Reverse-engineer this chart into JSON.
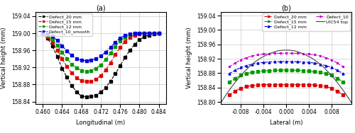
{
  "left_plot": {
    "title": "(a)",
    "xlabel": "Longitudinal (m)",
    "ylabel": "Vertical height (mm)",
    "xlim": [
      0.4585,
      0.4855
    ],
    "ylim": [
      158.835,
      159.05
    ],
    "xticks": [
      0.46,
      0.464,
      0.468,
      0.472,
      0.476,
      0.48,
      0.484
    ],
    "yticks": [
      158.84,
      158.88,
      158.92,
      158.96,
      159.0,
      159.04
    ],
    "series": [
      {
        "label": "Defect_20 mm",
        "color": "#000000",
        "marker": "s",
        "linestyle": "--",
        "x": [
          0.46,
          0.461,
          0.462,
          0.463,
          0.464,
          0.465,
          0.466,
          0.467,
          0.468,
          0.469,
          0.47,
          0.471,
          0.472,
          0.473,
          0.474,
          0.475,
          0.476,
          0.477,
          0.478,
          0.479,
          0.48,
          0.481,
          0.482,
          0.483,
          0.484
        ],
        "y": [
          159.0,
          158.988,
          158.97,
          158.945,
          158.918,
          158.897,
          158.878,
          158.862,
          158.853,
          158.851,
          158.852,
          158.855,
          158.862,
          158.873,
          158.888,
          158.905,
          158.924,
          158.943,
          158.96,
          158.974,
          158.985,
          158.992,
          158.996,
          158.999,
          159.0
        ]
      },
      {
        "label": "Defect_15 mm",
        "color": "#dd0000",
        "marker": "s",
        "linestyle": "--",
        "x": [
          0.46,
          0.461,
          0.462,
          0.463,
          0.464,
          0.465,
          0.466,
          0.467,
          0.468,
          0.469,
          0.47,
          0.471,
          0.472,
          0.473,
          0.474,
          0.475,
          0.476,
          0.477,
          0.478,
          0.479,
          0.48,
          0.481,
          0.482,
          0.483,
          0.484
        ],
        "y": [
          159.0,
          158.992,
          158.979,
          158.961,
          158.94,
          158.922,
          158.907,
          158.896,
          158.889,
          158.887,
          158.888,
          158.893,
          158.901,
          158.914,
          158.931,
          158.95,
          158.967,
          158.981,
          158.99,
          158.996,
          158.999,
          159.0,
          159.0,
          159.0,
          159.0
        ]
      },
      {
        "label": "Defect_12 mm",
        "color": "#009900",
        "marker": "s",
        "linestyle": "--",
        "x": [
          0.46,
          0.461,
          0.462,
          0.463,
          0.464,
          0.465,
          0.466,
          0.467,
          0.468,
          0.469,
          0.47,
          0.471,
          0.472,
          0.473,
          0.474,
          0.475,
          0.476,
          0.477,
          0.478,
          0.479,
          0.48,
          0.481,
          0.482,
          0.483,
          0.484
        ],
        "y": [
          159.0,
          158.995,
          158.985,
          158.972,
          158.956,
          158.941,
          158.928,
          158.919,
          158.913,
          158.911,
          158.913,
          158.918,
          158.926,
          158.938,
          158.954,
          158.969,
          158.982,
          158.991,
          158.997,
          159.0,
          159.0,
          159.0,
          159.0,
          159.0,
          159.0
        ]
      },
      {
        "label": "Defect_10_smooth",
        "color": "#0000dd",
        "marker": "s",
        "linestyle": "--",
        "x": [
          0.46,
          0.461,
          0.462,
          0.463,
          0.464,
          0.465,
          0.466,
          0.467,
          0.468,
          0.469,
          0.47,
          0.471,
          0.472,
          0.473,
          0.474,
          0.475,
          0.476,
          0.477,
          0.478,
          0.479,
          0.48,
          0.481,
          0.482,
          0.483,
          0.484
        ],
        "y": [
          159.0,
          158.998,
          158.993,
          158.983,
          158.971,
          158.958,
          158.948,
          158.941,
          158.937,
          158.936,
          158.937,
          158.941,
          158.947,
          158.956,
          158.967,
          158.979,
          158.989,
          158.995,
          158.999,
          159.0,
          159.0,
          159.0,
          159.0,
          159.0,
          159.0
        ]
      }
    ]
  },
  "right_plot": {
    "title": "(b)",
    "xlabel": "Lateral (m)",
    "ylabel": "Vertical height (mm)",
    "xlim": [
      -0.0115,
      0.0115
    ],
    "ylim": [
      158.795,
      159.05
    ],
    "xticks": [
      -0.008,
      -0.004,
      0.0,
      0.004,
      0.008
    ],
    "yticks": [
      158.8,
      158.84,
      158.88,
      158.92,
      158.96,
      159.0,
      159.04
    ],
    "series": [
      {
        "label": "Defect_20 mm",
        "color": "#dd0000",
        "marker": "s",
        "linestyle": "--",
        "x": [
          -0.01,
          -0.009,
          -0.008,
          -0.007,
          -0.006,
          -0.005,
          -0.004,
          -0.003,
          -0.002,
          -0.001,
          0.0,
          0.001,
          0.002,
          0.003,
          0.004,
          0.005,
          0.006,
          0.007,
          0.008,
          0.009,
          0.01
        ],
        "y": [
          158.82,
          158.83,
          158.838,
          158.843,
          158.845,
          158.847,
          158.848,
          158.848,
          158.848,
          158.848,
          158.848,
          158.848,
          158.848,
          158.848,
          158.848,
          158.847,
          158.845,
          158.843,
          158.838,
          158.83,
          158.82
        ]
      },
      {
        "label": "Defect_15 mm",
        "color": "#009900",
        "marker": "s",
        "linestyle": "--",
        "x": [
          -0.01,
          -0.009,
          -0.008,
          -0.007,
          -0.006,
          -0.005,
          -0.004,
          -0.003,
          -0.002,
          -0.001,
          0.0,
          0.001,
          0.002,
          0.003,
          0.004,
          0.005,
          0.006,
          0.007,
          0.008,
          0.009,
          0.01
        ],
        "y": [
          158.856,
          158.866,
          158.874,
          158.879,
          158.882,
          158.884,
          158.886,
          158.887,
          158.888,
          158.888,
          158.889,
          158.888,
          158.888,
          158.887,
          158.886,
          158.884,
          158.882,
          158.879,
          158.874,
          158.866,
          158.856
        ]
      },
      {
        "label": "Defect_12 mm",
        "color": "#0000dd",
        "marker": "^",
        "linestyle": "--",
        "x": [
          -0.01,
          -0.009,
          -0.008,
          -0.007,
          -0.006,
          -0.005,
          -0.004,
          -0.003,
          -0.002,
          -0.001,
          0.0,
          0.001,
          0.002,
          0.003,
          0.004,
          0.005,
          0.006,
          0.007,
          0.008,
          0.009,
          0.01
        ],
        "y": [
          158.879,
          158.888,
          158.896,
          158.901,
          158.905,
          158.908,
          158.91,
          158.911,
          158.912,
          158.912,
          158.913,
          158.912,
          158.912,
          158.911,
          158.91,
          158.908,
          158.905,
          158.901,
          158.896,
          158.888,
          158.879
        ]
      },
      {
        "label": "Defect_10",
        "color": "#cc00cc",
        "marker": "*",
        "linestyle": "--",
        "x": [
          -0.01,
          -0.009,
          -0.008,
          -0.007,
          -0.006,
          -0.005,
          -0.004,
          -0.003,
          -0.002,
          -0.001,
          0.0,
          0.001,
          0.002,
          0.003,
          0.004,
          0.005,
          0.006,
          0.007,
          0.008,
          0.009,
          0.01
        ],
        "y": [
          158.898,
          158.908,
          158.917,
          158.923,
          158.928,
          158.931,
          158.933,
          158.934,
          158.935,
          158.935,
          158.936,
          158.935,
          158.935,
          158.934,
          158.933,
          158.931,
          158.928,
          158.923,
          158.917,
          158.908,
          158.898
        ]
      },
      {
        "label": "UIC54 top",
        "color": "#444444",
        "marker": "None",
        "linestyle": "-",
        "x": [
          -0.0115,
          -0.0105,
          -0.0095,
          -0.0085,
          -0.0075,
          -0.0065,
          -0.0055,
          -0.0045,
          -0.0035,
          -0.0025,
          -0.0015,
          -0.0005,
          0.0005,
          0.0015,
          0.0025,
          0.0035,
          0.0045,
          0.0055,
          0.0065,
          0.0075,
          0.0085,
          0.0095,
          0.0105,
          0.0115
        ],
        "y": [
          158.798,
          158.822,
          158.844,
          158.864,
          158.882,
          158.898,
          158.911,
          158.922,
          158.93,
          158.937,
          158.942,
          158.944,
          158.944,
          158.942,
          158.937,
          158.93,
          158.922,
          158.911,
          158.898,
          158.882,
          158.864,
          158.844,
          158.822,
          158.798
        ]
      }
    ]
  }
}
